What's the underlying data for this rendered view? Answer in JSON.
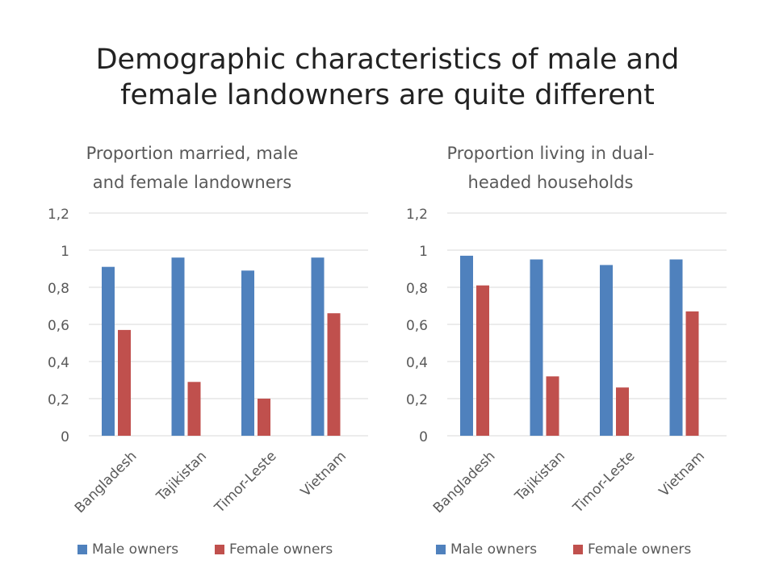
{
  "slide": {
    "title_lines": [
      "Demographic characteristics of male and",
      "female landowners are quite different"
    ]
  },
  "colors": {
    "male": "#4F81BD",
    "female": "#C0504D",
    "grid": "#D9D9D9",
    "text": "#595959"
  },
  "chart_data": [
    {
      "type": "bar",
      "title_lines": [
        "Proportion married, male",
        "and female landowners"
      ],
      "categories": [
        "Bangladesh",
        "Tajikistan",
        "Timor-Leste",
        "Vietnam"
      ],
      "series": [
        {
          "name": "Male owners",
          "values": [
            0.91,
            0.96,
            0.89,
            0.96
          ]
        },
        {
          "name": "Female owners",
          "values": [
            0.57,
            0.29,
            0.2,
            0.66
          ]
        }
      ],
      "yticks": [
        "0",
        "0,2",
        "0,4",
        "0,6",
        "0,8",
        "1",
        "1,2"
      ],
      "ylim": [
        0,
        1.2
      ],
      "grid": true,
      "legend": "bottom"
    },
    {
      "type": "bar",
      "title_lines": [
        "Proportion living in dual-",
        "headed households"
      ],
      "categories": [
        "Bangladesh",
        "Tajikistan",
        "Timor-Leste",
        "Vietnam"
      ],
      "series": [
        {
          "name": "Male owners",
          "values": [
            0.97,
            0.95,
            0.92,
            0.95
          ]
        },
        {
          "name": "Female owners",
          "values": [
            0.81,
            0.32,
            0.26,
            0.67
          ]
        }
      ],
      "yticks": [
        "0",
        "0,2",
        "0,4",
        "0,6",
        "0,8",
        "1",
        "1,2"
      ],
      "ylim": [
        0,
        1.2
      ],
      "grid": true,
      "legend": "bottom"
    }
  ]
}
